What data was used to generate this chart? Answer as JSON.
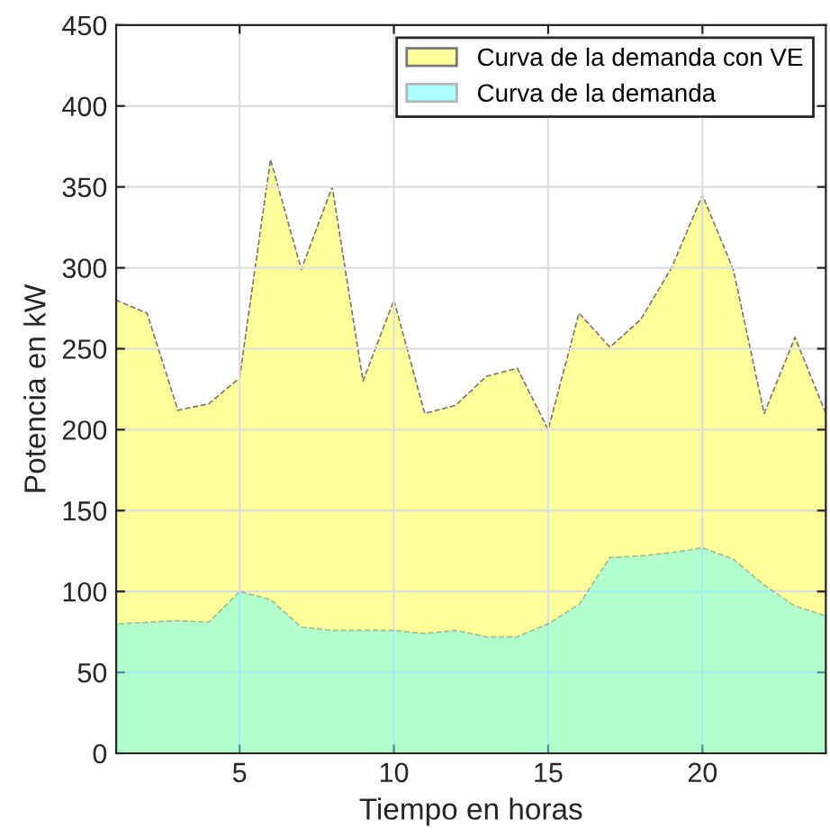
{
  "chart_data": {
    "type": "area",
    "xlabel": "Tiempo en horas",
    "ylabel": "Potencia en kW",
    "x": [
      1,
      2,
      3,
      4,
      5,
      6,
      7,
      8,
      9,
      10,
      11,
      12,
      13,
      14,
      15,
      16,
      17,
      18,
      19,
      20,
      21,
      22,
      23,
      24
    ],
    "series": [
      {
        "name": "Curva de la demanda con VE",
        "color": "#ffff99",
        "values": [
          280,
          272,
          212,
          216,
          232,
          367,
          299,
          350,
          230,
          280,
          210,
          215,
          233,
          238,
          200,
          272,
          251,
          268,
          300,
          345,
          299,
          210,
          257,
          210
        ]
      },
      {
        "name": "Curva de la demanda",
        "color": "#66ffff",
        "values": [
          80,
          81,
          82,
          81,
          100,
          95,
          78,
          76,
          76,
          76,
          74,
          76,
          72,
          72,
          80,
          92,
          121,
          122,
          124,
          127,
          120,
          104,
          91,
          85
        ]
      }
    ],
    "xlim": [
      1,
      24
    ],
    "xticks": [
      5,
      10,
      15,
      20
    ],
    "ylim": [
      0,
      450
    ],
    "yticks": [
      0,
      50,
      100,
      150,
      200,
      250,
      300,
      350,
      400,
      450
    ],
    "grid": true,
    "legend": "top right"
  }
}
